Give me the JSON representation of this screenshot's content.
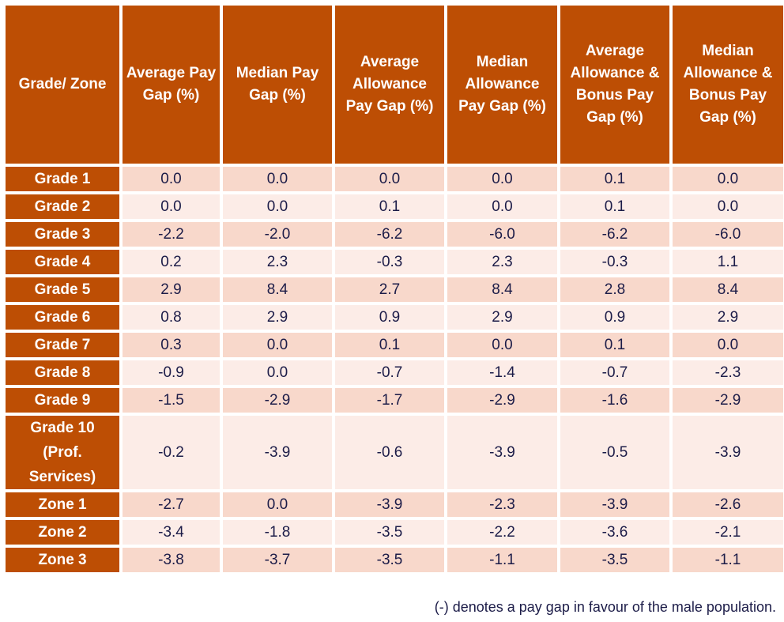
{
  "colors": {
    "header_bg": "#bd4e04",
    "row_odd": "#f8d8cb",
    "row_even": "#fcece7",
    "text": "#1c1c48"
  },
  "table": {
    "headers": [
      "Grade/ Zone",
      "Average Pay Gap (%)",
      "Median Pay Gap (%)",
      "Average Allowance Pay Gap (%)",
      "Median Allowance Pay Gap (%)",
      "Average Allowance & Bonus Pay Gap (%)",
      "Median Allowance & Bonus Pay Gap (%)"
    ],
    "rows": [
      {
        "label": "Grade 1",
        "values": [
          "0.0",
          "0.0",
          "0.0",
          "0.0",
          "0.1",
          "0.0"
        ]
      },
      {
        "label": "Grade 2",
        "values": [
          "0.0",
          "0.0",
          "0.1",
          "0.0",
          "0.1",
          "0.0"
        ]
      },
      {
        "label": "Grade 3",
        "values": [
          "-2.2",
          "-2.0",
          "-6.2",
          "-6.0",
          "-6.2",
          "-6.0"
        ]
      },
      {
        "label": "Grade 4",
        "values": [
          "0.2",
          "2.3",
          "-0.3",
          "2.3",
          "-0.3",
          "1.1"
        ]
      },
      {
        "label": "Grade 5",
        "values": [
          "2.9",
          "8.4",
          "2.7",
          "8.4",
          "2.8",
          "8.4"
        ]
      },
      {
        "label": "Grade 6",
        "values": [
          "0.8",
          "2.9",
          "0.9",
          "2.9",
          "0.9",
          "2.9"
        ]
      },
      {
        "label": "Grade 7",
        "values": [
          "0.3",
          "0.0",
          "0.1",
          "0.0",
          "0.1",
          "0.0"
        ]
      },
      {
        "label": "Grade 8",
        "values": [
          "-0.9",
          "0.0",
          "-0.7",
          "-1.4",
          "-0.7",
          "-2.3"
        ]
      },
      {
        "label": "Grade 9",
        "values": [
          "-1.5",
          "-2.9",
          "-1.7",
          "-2.9",
          "-1.6",
          "-2.9"
        ]
      },
      {
        "label": "Grade 10 (Prof. Services)",
        "values": [
          "-0.2",
          "-3.9",
          "-0.6",
          "-3.9",
          "-0.5",
          "-3.9"
        ]
      },
      {
        "label": "Zone 1",
        "values": [
          "-2.7",
          "0.0",
          "-3.9",
          "-2.3",
          "-3.9",
          "-2.6"
        ]
      },
      {
        "label": "Zone 2",
        "values": [
          "-3.4",
          "-1.8",
          "-3.5",
          "-2.2",
          "-3.6",
          "-2.1"
        ]
      },
      {
        "label": "Zone 3",
        "values": [
          "-3.8",
          "-3.7",
          "-3.5",
          "-1.1",
          "-3.5",
          "-1.1"
        ]
      }
    ]
  },
  "footnote": "(-) denotes a pay gap in favour of the male population."
}
